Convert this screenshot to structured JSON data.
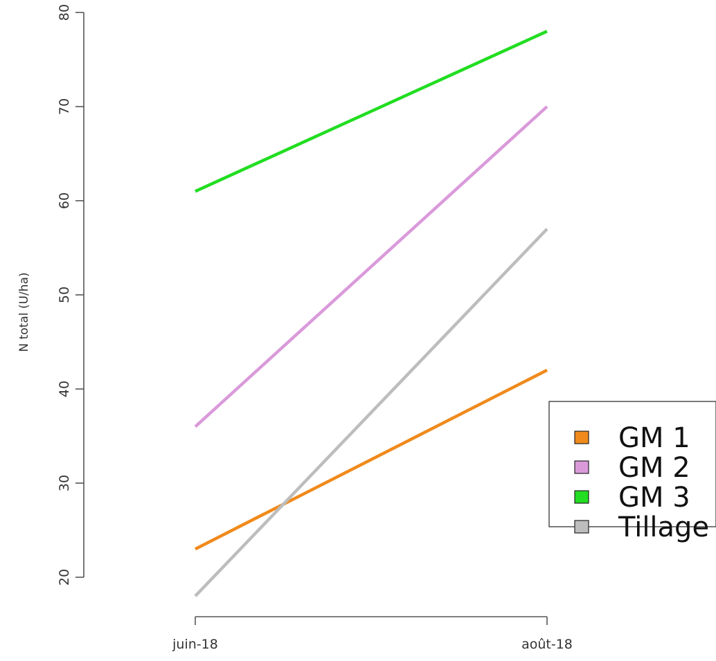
{
  "chart_data": {
    "type": "line",
    "title": "",
    "xlabel": "",
    "ylabel": "N total (U/ha)",
    "categories": [
      "juin-18",
      "août-18"
    ],
    "ylim": [
      20,
      80
    ],
    "yticks": [
      20,
      30,
      40,
      50,
      60,
      70,
      80
    ],
    "grid": false,
    "legend_position": "right",
    "series": [
      {
        "name": "GM 1",
        "values": [
          23,
          42
        ],
        "color": "#f08a1c"
      },
      {
        "name": "GM 2",
        "values": [
          36,
          70
        ],
        "color": "#da9ada"
      },
      {
        "name": "GM 3",
        "values": [
          61,
          78
        ],
        "color": "#22dd22"
      },
      {
        "name": "Tillage",
        "values": [
          18,
          57
        ],
        "color": "#bdbdbd"
      }
    ]
  }
}
